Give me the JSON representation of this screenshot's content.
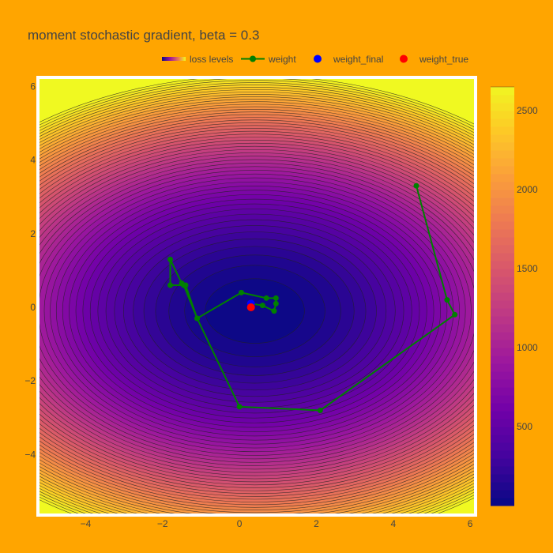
{
  "colors": {
    "paper_bg": "#FFA500",
    "plot_border": "#ffffff",
    "weight_line": "#008000",
    "weight_final": "#0000FF",
    "weight_true": "#FF0000",
    "contour_line": "#222222"
  },
  "chart_data": {
    "type": "contour",
    "title": "moment stochastic gradient, beta = 0.3",
    "xlim": [
      -5.2,
      6.1
    ],
    "ylim": [
      -5.6,
      6.2
    ],
    "x_ticks": [
      -4,
      -2,
      0,
      2,
      4,
      6
    ],
    "y_ticks": [
      -4,
      -2,
      0,
      2,
      4,
      6
    ],
    "x_tick_labels": [
      "−4",
      "−2",
      "0",
      "2",
      "4",
      "6"
    ],
    "y_tick_labels": [
      "−4",
      "−2",
      "0",
      "2",
      "4",
      "6"
    ],
    "colorscale": "Plasma",
    "colorbar": {
      "range": [
        0,
        2650
      ],
      "ticks": [
        500,
        1000,
        1500,
        2000,
        2500
      ],
      "tick_labels": [
        "500",
        "1000",
        "1500",
        "2000",
        "2500"
      ]
    },
    "loss_function": {
      "center": [
        0.4,
        -0.1
      ],
      "a_coef": 30,
      "b_coef": 65,
      "level_step": 50,
      "level_max": 2650
    },
    "legend": {
      "placement": "top",
      "entries": [
        "loss levels",
        "weight",
        "weight_final",
        "weight_true"
      ]
    },
    "series": [
      {
        "name": "weight",
        "type": "line+markers",
        "x": [
          4.6,
          5.4,
          5.6,
          2.1,
          0.0,
          -1.1,
          -1.4,
          -1.8,
          -1.8,
          -1.5,
          -1.45,
          -1.1,
          0.05,
          0.7,
          0.95,
          0.95,
          0.9,
          0.6,
          0.3
        ],
        "y": [
          3.3,
          0.2,
          -0.2,
          -2.8,
          -2.7,
          -0.3,
          0.6,
          0.6,
          1.3,
          0.65,
          0.6,
          -0.3,
          0.4,
          0.25,
          0.25,
          0.1,
          -0.1,
          0.05,
          0.1
        ]
      },
      {
        "name": "weight_final",
        "type": "marker",
        "x": [
          0.3
        ],
        "y": [
          0.1
        ]
      },
      {
        "name": "weight_true",
        "type": "marker",
        "x": [
          0.3
        ],
        "y": [
          0.0
        ]
      }
    ]
  }
}
